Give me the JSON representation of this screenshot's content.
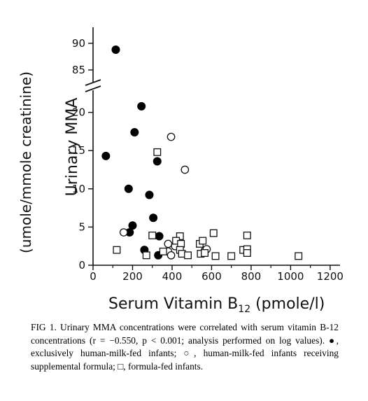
{
  "chart_data": {
    "type": "scatter",
    "title": "",
    "xlabel": "Serum Vitamin B",
    "xlabel_sub": "12",
    "xlabel_suffix": " (pmole/l)",
    "ylabel_line1": "Urinary MMA",
    "ylabel_line2": "(umole/mmole creatinine)",
    "xlim": [
      0,
      1250
    ],
    "ylim_lower": [
      0,
      25
    ],
    "ylim_upper": [
      82.5,
      93
    ],
    "x_ticks": [
      0,
      200,
      400,
      600,
      800,
      1000,
      1200
    ],
    "x_tick_labels": [
      "0",
      "200",
      "400",
      "600",
      "800",
      "1000",
      "1200"
    ],
    "y_ticks_lower": [
      0,
      5,
      10,
      15,
      20
    ],
    "y_tick_labels_lower": [
      "0",
      "5",
      "10",
      "15",
      "20"
    ],
    "y_ticks_upper": [
      85,
      90
    ],
    "y_tick_labels_upper": [
      "85",
      "90"
    ],
    "y_axis_break": true,
    "grid": false,
    "series": [
      {
        "marker": "filled-circle",
        "points": [
          [
            115,
            88.8
          ],
          [
            245,
            20.8
          ],
          [
            210,
            17.4
          ],
          [
            65,
            14.3
          ],
          [
            325,
            13.6
          ],
          [
            180,
            10.0
          ],
          [
            285,
            9.2
          ],
          [
            305,
            6.2
          ],
          [
            200,
            5.2
          ],
          [
            185,
            4.3
          ],
          [
            335,
            3.8
          ],
          [
            260,
            2.0
          ],
          [
            330,
            1.3
          ]
        ]
      },
      {
        "marker": "open-circle",
        "points": [
          [
            395,
            16.8
          ],
          [
            465,
            12.5
          ],
          [
            155,
            4.3
          ],
          [
            380,
            2.8
          ],
          [
            415,
            2.5
          ],
          [
            380,
            1.8
          ],
          [
            565,
            1.9
          ],
          [
            575,
            2.1
          ],
          [
            395,
            1.3
          ]
        ]
      },
      {
        "marker": "open-square",
        "points": [
          [
            325,
            14.8
          ],
          [
            300,
            3.9
          ],
          [
            440,
            3.8
          ],
          [
            610,
            4.2
          ],
          [
            780,
            3.9
          ],
          [
            120,
            2.0
          ],
          [
            270,
            1.3
          ],
          [
            355,
            1.8
          ],
          [
            420,
            3.2
          ],
          [
            445,
            2.8
          ],
          [
            440,
            2.0
          ],
          [
            450,
            1.5
          ],
          [
            480,
            1.3
          ],
          [
            540,
            2.8
          ],
          [
            555,
            3.2
          ],
          [
            545,
            1.5
          ],
          [
            565,
            1.6
          ],
          [
            620,
            1.2
          ],
          [
            700,
            1.2
          ],
          [
            760,
            2.0
          ],
          [
            780,
            2.1
          ],
          [
            780,
            1.6
          ],
          [
            1040,
            1.2
          ]
        ]
      }
    ]
  },
  "caption": {
    "text": "FIG 1. Urinary MMA concentrations were correlated with serum vitamin B-12 concentrations (r = −0.550, p < 0.001; analysis performed on log values). ●, exclusively human-milk-fed infants; ○, human-milk-fed infants receiving supplemental formula; □, formula-fed infants."
  }
}
